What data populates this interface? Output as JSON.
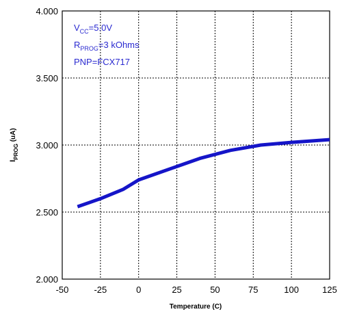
{
  "chart_data": {
    "type": "line",
    "xlabel": "Temperature (C)",
    "ylabel": {
      "main": "I",
      "sub": "PROG",
      "suffix": " (uA)"
    },
    "xlim": [
      -50,
      125
    ],
    "ylim": [
      2.0,
      4.0
    ],
    "xticks": [
      -50,
      -25,
      0,
      25,
      50,
      75,
      100,
      125
    ],
    "yticks": [
      2.0,
      2.5,
      3.0,
      3.5,
      4.0
    ],
    "ytick_labels": [
      "2.000",
      "2.500",
      "3.000",
      "3.500",
      "4.000"
    ],
    "grid": true,
    "series": [
      {
        "x": [
          -40,
          -25,
          -10,
          0,
          25,
          40,
          60,
          80,
          100,
          125
        ],
        "values": [
          2.54,
          2.6,
          2.67,
          2.74,
          2.84,
          2.9,
          2.96,
          3.0,
          3.02,
          3.04
        ],
        "color": "#1515c8"
      }
    ],
    "annotations": [
      {
        "main": "V",
        "sub": "CC",
        "rest": "=5.0V"
      },
      {
        "main": "R",
        "sub": "PROG",
        "rest": "=3 kOhms"
      },
      {
        "main": "PNP=FCX717",
        "sub": "",
        "rest": ""
      }
    ],
    "annotation_color": "#2a2ad0"
  }
}
